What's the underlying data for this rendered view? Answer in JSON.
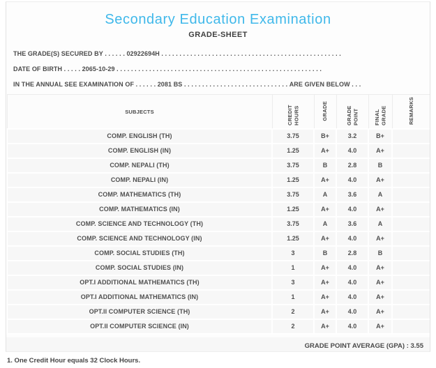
{
  "title": "Secondary Education Examination",
  "subtitle": "GRADE-SHEET",
  "info": {
    "line1": {
      "label": "THE GRADE(S) SECURED BY",
      "dots": ". . . . . .",
      "value": "02922694H",
      "tail": ". . . . . . . . . . . . . . . . . . . . . . . . . . . . . . . . . . . . . . . . . . . . . . . . . ."
    },
    "line2": {
      "label": "DATE OF BIRTH",
      "dots": ". . . . .",
      "value": "2065-10-29",
      "tail": ". . . . . . . . . . . . . . . . . . . . . . . . . . . . . . . . . . . . . . . . . . . . . . . . . . . . . . . . ."
    },
    "line3": {
      "label": "IN THE ANNUAL SEE EXAMINATION OF",
      "dots": ". . . . . .",
      "value": "2081 BS",
      "mid": ". . . . . . . . . . . . . . . . . . . . . . . . . . . . .",
      "suffix": "ARE GIVEN BELOW . . ."
    }
  },
  "table": {
    "subjects_header": "SUBJECTS",
    "columns": [
      "CREDIT HOURS",
      "GRADE",
      "GRADE POINT",
      "FINAL GRADE",
      "REMARKS"
    ],
    "rows": [
      {
        "subject": "COMP. ENGLISH (TH)",
        "credit_hours": "3.75",
        "grade": "B+",
        "grade_point": "3.2",
        "final_grade": "B+",
        "remarks": ""
      },
      {
        "subject": "COMP. ENGLISH (IN)",
        "credit_hours": "1.25",
        "grade": "A+",
        "grade_point": "4.0",
        "final_grade": "A+",
        "remarks": ""
      },
      {
        "subject": "COMP. NEPALI (TH)",
        "credit_hours": "3.75",
        "grade": "B",
        "grade_point": "2.8",
        "final_grade": "B",
        "remarks": ""
      },
      {
        "subject": "COMP. NEPALI (IN)",
        "credit_hours": "1.25",
        "grade": "A+",
        "grade_point": "4.0",
        "final_grade": "A+",
        "remarks": ""
      },
      {
        "subject": "COMP. MATHEMATICS (TH)",
        "credit_hours": "3.75",
        "grade": "A",
        "grade_point": "3.6",
        "final_grade": "A",
        "remarks": ""
      },
      {
        "subject": "COMP. MATHEMATICS (IN)",
        "credit_hours": "1.25",
        "grade": "A+",
        "grade_point": "4.0",
        "final_grade": "A+",
        "remarks": ""
      },
      {
        "subject": "COMP. SCIENCE AND TECHNOLOGY (TH)",
        "credit_hours": "3.75",
        "grade": "A",
        "grade_point": "3.6",
        "final_grade": "A",
        "remarks": ""
      },
      {
        "subject": "COMP. SCIENCE AND TECHNOLOGY (IN)",
        "credit_hours": "1.25",
        "grade": "A+",
        "grade_point": "4.0",
        "final_grade": "A+",
        "remarks": ""
      },
      {
        "subject": "COMP. SOCIAL STUDIES (TH)",
        "credit_hours": "3",
        "grade": "B",
        "grade_point": "2.8",
        "final_grade": "B",
        "remarks": ""
      },
      {
        "subject": "COMP. SOCIAL STUDIES (IN)",
        "credit_hours": "1",
        "grade": "A+",
        "grade_point": "4.0",
        "final_grade": "A+",
        "remarks": ""
      },
      {
        "subject": "OPT.I ADDITIONAL MATHEMATICS (TH)",
        "credit_hours": "3",
        "grade": "A+",
        "grade_point": "4.0",
        "final_grade": "A+",
        "remarks": ""
      },
      {
        "subject": "OPT.I ADDITIONAL MATHEMATICS (IN)",
        "credit_hours": "1",
        "grade": "A+",
        "grade_point": "4.0",
        "final_grade": "A+",
        "remarks": ""
      },
      {
        "subject": "OPT.II COMPUTER SCIENCE (TH)",
        "credit_hours": "2",
        "grade": "A+",
        "grade_point": "4.0",
        "final_grade": "A+",
        "remarks": ""
      },
      {
        "subject": "OPT.II COMPUTER SCIENCE (IN)",
        "credit_hours": "2",
        "grade": "A+",
        "grade_point": "4.0",
        "final_grade": "A+",
        "remarks": ""
      }
    ]
  },
  "summary": {
    "gpa_line": "GRADE POINT AVERAGE (GPA) : 3.55"
  },
  "footnote": "1. One Credit Hour equals 32 Clock Hours.",
  "colors": {
    "title_accent": "#3fb8ea",
    "body_text": "#4a4a4a",
    "row_background": "#f7f7f7",
    "border": "#e2e2e2"
  }
}
